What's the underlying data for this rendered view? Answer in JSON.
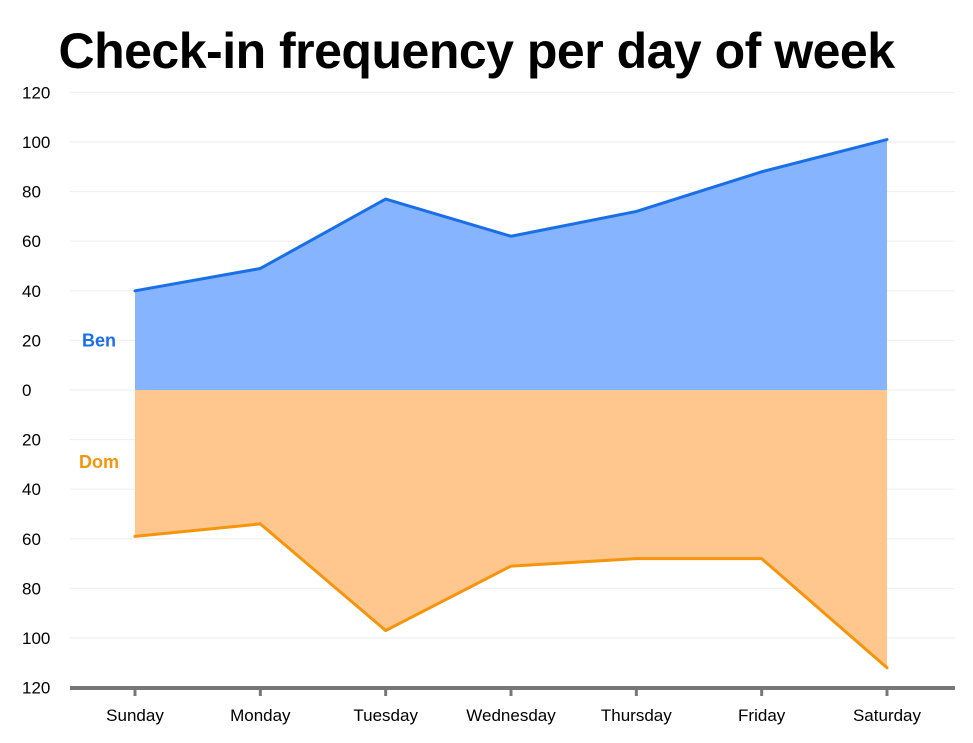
{
  "chart_data": {
    "type": "area",
    "title": "Check-in frequency per day of week",
    "xlabel": "",
    "ylabel": "",
    "categories": [
      "Sunday",
      "Monday",
      "Tuesday",
      "Wednesday",
      "Thursday",
      "Friday",
      "Saturday"
    ],
    "y_tick_labels": [
      "120",
      "100",
      "80",
      "60",
      "40",
      "20",
      "0",
      "20",
      "40",
      "60",
      "80",
      "100",
      "120"
    ],
    "ylim": [
      -120,
      120
    ],
    "layout": "diverging",
    "grid": true,
    "series": [
      {
        "name": "Ben",
        "direction": "up",
        "values": [
          40,
          49,
          77,
          62,
          72,
          88,
          101
        ],
        "line_color": "#1a6fe8",
        "fill_color": "#86b4fe"
      },
      {
        "name": "Dom",
        "direction": "down",
        "values": [
          59,
          54,
          97,
          71,
          68,
          68,
          112
        ],
        "line_color": "#f7940d",
        "fill_color": "#ffc78d"
      }
    ]
  }
}
